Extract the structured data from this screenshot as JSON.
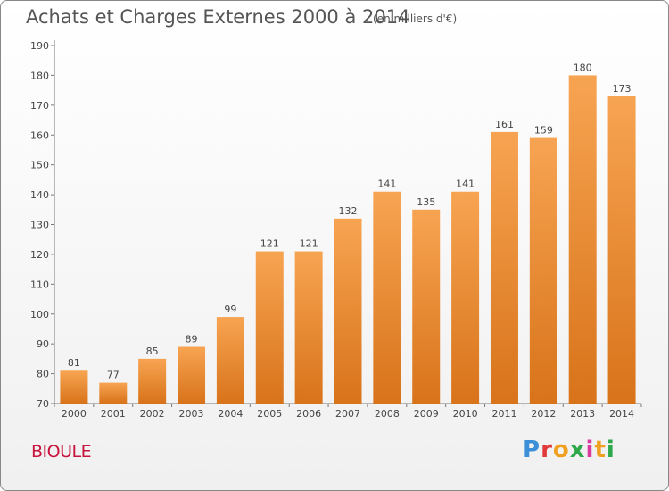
{
  "header": {
    "title": "Achats et Charges Externes 2000 à 2014",
    "unit": "(en milliers d'€)"
  },
  "footer": {
    "commune": "BIOULE",
    "logo_text": "Proxiti"
  },
  "colors": {
    "bar_light": "#f7a452",
    "bar_dark": "#d8731a",
    "title": "#555555",
    "commune": "#c8143c"
  },
  "chart_data": {
    "type": "bar",
    "title": "Achats et Charges Externes 2000 à 2014",
    "xlabel": "",
    "ylabel": "",
    "categories": [
      "2000",
      "2001",
      "2002",
      "2003",
      "2004",
      "2005",
      "2006",
      "2007",
      "2008",
      "2009",
      "2010",
      "2011",
      "2012",
      "2013",
      "2014"
    ],
    "values": [
      81,
      77,
      85,
      89,
      99,
      121,
      121,
      132,
      141,
      135,
      141,
      161,
      159,
      180,
      173
    ],
    "ylim": [
      70,
      190
    ],
    "yticks": [
      70,
      80,
      90,
      100,
      110,
      120,
      130,
      140,
      150,
      160,
      170,
      180,
      190
    ],
    "grid": false,
    "data_labels": true
  }
}
